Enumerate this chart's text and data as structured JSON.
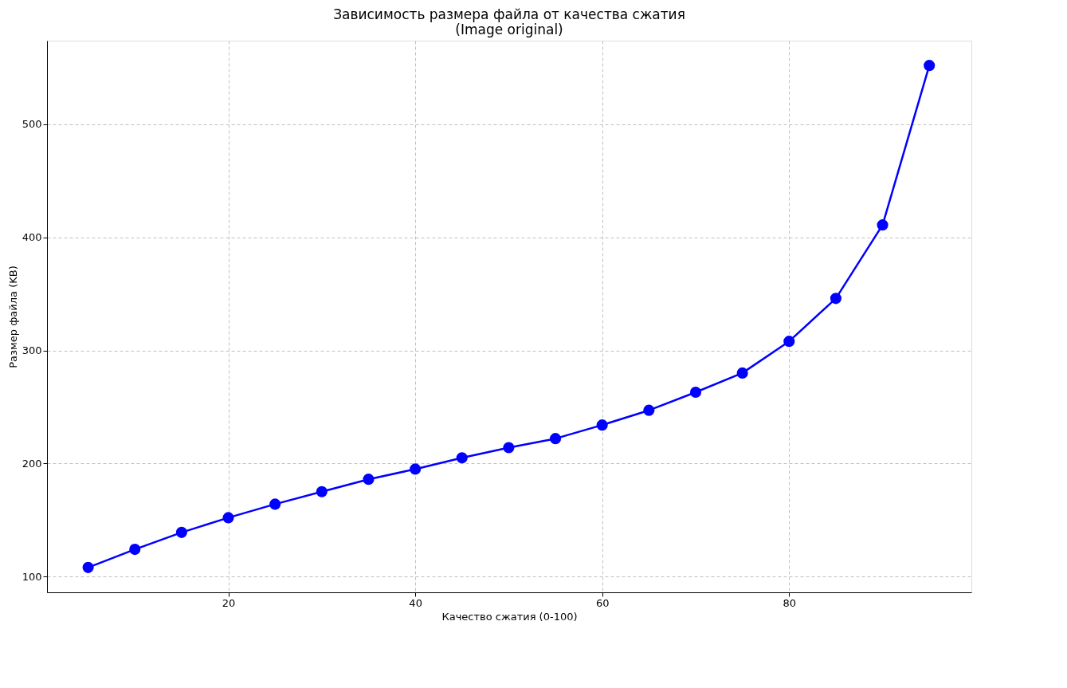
{
  "chart_data": {
    "type": "line",
    "title": "Зависимость размера файла от качества сжатия\n(Image original)",
    "xlabel": "Качество сжатия (0-100)",
    "ylabel": "Размер файла (KB)",
    "x": [
      5,
      10,
      15,
      20,
      25,
      30,
      35,
      40,
      45,
      50,
      55,
      60,
      65,
      70,
      75,
      80,
      85,
      90,
      95
    ],
    "series": [
      {
        "color": "#0000ff",
        "values": [
          108,
          124,
          139,
          152,
          164,
          175,
          186,
          195,
          205,
          214,
          222,
          234,
          247,
          263,
          280,
          308,
          346,
          411,
          552
        ]
      }
    ],
    "xlim": [
      0.6,
      99.5
    ],
    "ylim": [
      86,
      574
    ],
    "xticks": [
      20,
      40,
      60,
      80
    ],
    "yticks": [
      100,
      200,
      300,
      400,
      500
    ],
    "grid": true,
    "marker": "circle",
    "line_style": "solid",
    "legend": false
  }
}
